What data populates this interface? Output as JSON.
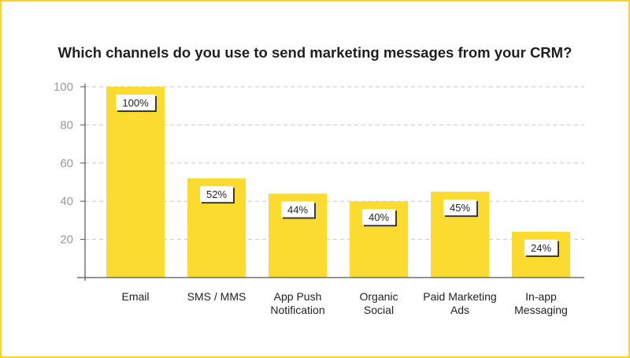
{
  "chart_data": {
    "type": "bar",
    "title": "Which channels do you use to send marketing messages from your CRM?",
    "categories": [
      [
        "Email"
      ],
      [
        "SMS / MMS"
      ],
      [
        "App Push",
        "Notification"
      ],
      [
        "Organic",
        "Social"
      ],
      [
        "Paid Marketing",
        "Ads"
      ],
      [
        "In-app",
        "Messaging"
      ]
    ],
    "values": [
      100,
      52,
      44,
      40,
      45,
      24
    ],
    "data_labels": [
      "100%",
      "52%",
      "44%",
      "40%",
      "45%",
      "24%"
    ],
    "y_ticks": [
      "20",
      "40",
      "60",
      "80",
      "100"
    ],
    "ylim": [
      0,
      100
    ],
    "grid": "horizontal dashed",
    "bar_color": "#fcdb30",
    "border_color": "#f9d527"
  }
}
